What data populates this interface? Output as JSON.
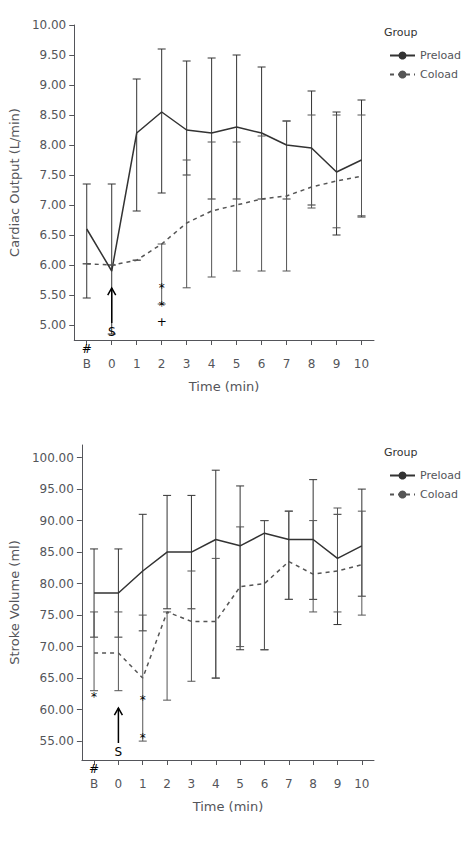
{
  "chart_data": [
    {
      "type": "line",
      "xlabel": "Time (min)",
      "ylabel": "Cardiac Output (L/min)",
      "categories": [
        "B",
        "0",
        "1",
        "2",
        "3",
        "4",
        "5",
        "6",
        "7",
        "8",
        "9",
        "10"
      ],
      "series": [
        {
          "name": "Preload",
          "color": "#333333",
          "line_style": "solid",
          "values": [
            6.6,
            5.9,
            8.2,
            8.55,
            8.25,
            8.2,
            8.3,
            8.2,
            8.0,
            7.95,
            7.55,
            7.75
          ],
          "upper": [
            7.35,
            7.35,
            9.1,
            9.6,
            9.4,
            9.45,
            9.5,
            9.3,
            8.4,
            8.9,
            8.55,
            8.75
          ],
          "lower": [
            5.45,
            4.85,
            6.9,
            7.2,
            7.5,
            7.1,
            7.1,
            7.1,
            7.1,
            7.0,
            6.5,
            6.8
          ]
        },
        {
          "name": "Coload",
          "color": "#555555",
          "line_style": "dashed",
          "values": [
            6.02,
            6.0,
            6.08,
            6.35,
            6.7,
            6.9,
            7.0,
            7.1,
            7.15,
            7.3,
            7.4,
            7.48
          ],
          "upper": [
            6.02,
            6.0,
            6.08,
            6.35,
            7.75,
            8.05,
            8.05,
            8.15,
            8.4,
            8.5,
            8.5,
            8.5
          ],
          "lower": [
            6.02,
            6.0,
            6.08,
            5.35,
            5.62,
            5.8,
            5.9,
            5.9,
            5.9,
            6.95,
            6.62,
            6.82
          ]
        }
      ],
      "ylim": [
        4.75,
        10.0
      ],
      "yticks": [
        {
          "value": 5.0,
          "label": "5.00"
        },
        {
          "value": 5.5,
          "label": "5.50"
        },
        {
          "value": 6.0,
          "label": "6.00"
        },
        {
          "value": 6.5,
          "label": "6.50"
        },
        {
          "value": 7.0,
          "label": "7.00"
        },
        {
          "value": 7.5,
          "label": "7.50"
        },
        {
          "value": 8.0,
          "label": "8.00"
        },
        {
          "value": 8.5,
          "label": "8.50"
        },
        {
          "value": 9.0,
          "label": "9.00"
        },
        {
          "value": 9.5,
          "label": "9.50"
        },
        {
          "value": 10.0,
          "label": "10.00"
        }
      ],
      "grid": false,
      "legend": "right",
      "legend_title": "Group",
      "annotations": [
        {
          "text": "S",
          "x": "0",
          "arrow": true
        },
        {
          "text": "#",
          "x": "B"
        },
        {
          "text": "*",
          "x": "2",
          "y": 5.62
        },
        {
          "text": "*",
          "x": "2",
          "y": 5.32
        },
        {
          "text": "+",
          "x": "2",
          "y": 5.05
        }
      ]
    },
    {
      "type": "line",
      "xlabel": "Time (min)",
      "ylabel": "Stroke Volume (ml)",
      "categories": [
        "B",
        "0",
        "1",
        "2",
        "3",
        "4",
        "5",
        "6",
        "7",
        "8",
        "9",
        "10"
      ],
      "series": [
        {
          "name": "Preload",
          "color": "#333333",
          "line_style": "solid",
          "values": [
            78.5,
            78.5,
            82.0,
            85.0,
            85.0,
            87.0,
            86.0,
            88.0,
            87.0,
            87.0,
            84.0,
            86.0
          ],
          "upper": [
            85.5,
            85.5,
            91.0,
            94.0,
            94.0,
            98.0,
            95.5,
            90.0,
            91.5,
            96.5,
            91.0,
            95.0
          ],
          "lower": [
            71.5,
            71.5,
            72.5,
            76.0,
            76.0,
            65.0,
            69.5,
            69.5,
            77.5,
            77.5,
            73.5,
            78.0
          ]
        },
        {
          "name": "Coload",
          "color": "#555555",
          "line_style": "dashed",
          "values": [
            69.0,
            69.0,
            65.0,
            75.5,
            74.0,
            74.0,
            79.5,
            80.0,
            83.5,
            81.5,
            82.0,
            83.0
          ],
          "upper": [
            75.5,
            75.5,
            75.0,
            75.5,
            82.0,
            84.0,
            89.0,
            90.0,
            91.5,
            90.0,
            92.0,
            91.5
          ],
          "lower": [
            63.0,
            63.0,
            55.0,
            61.5,
            64.5,
            65.0,
            70.0,
            69.5,
            77.5,
            75.5,
            75.5,
            75.0
          ]
        }
      ],
      "ylim": [
        52,
        102
      ],
      "yticks": [
        {
          "value": 55,
          "label": "55.00"
        },
        {
          "value": 60,
          "label": "60.00"
        },
        {
          "value": 65,
          "label": "65.00"
        },
        {
          "value": 70,
          "label": "70.00"
        },
        {
          "value": 75,
          "label": "75.00"
        },
        {
          "value": 80,
          "label": "80.00"
        },
        {
          "value": 85,
          "label": "85.00"
        },
        {
          "value": 90,
          "label": "90.00"
        },
        {
          "value": 95,
          "label": "95.00"
        },
        {
          "value": 100,
          "label": "100.00"
        }
      ],
      "grid": false,
      "legend": "right",
      "legend_title": "Group",
      "annotations": [
        {
          "text": "S",
          "x": "0",
          "arrow": true
        },
        {
          "text": "#",
          "x": "B"
        },
        {
          "text": "*",
          "x": "B",
          "y": 62.0
        },
        {
          "text": "*",
          "x": "1",
          "y": 61.5
        },
        {
          "text": "*",
          "x": "1",
          "y": 55.5
        }
      ]
    }
  ]
}
